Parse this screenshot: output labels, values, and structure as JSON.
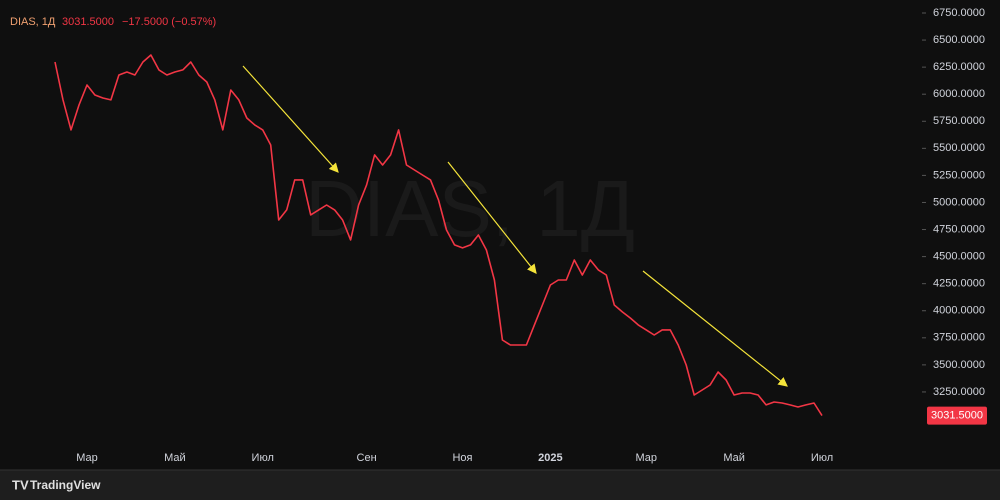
{
  "chart_data": {
    "type": "line",
    "title": "DIAS, 1Д",
    "header_price": "3031.5000",
    "header_change": "−17.5000 (−0.57%)",
    "brand": "TradingView",
    "categories": [
      null,
      null,
      null,
      null,
      "Мар",
      null,
      null,
      null,
      null,
      null,
      null,
      null,
      null,
      null,
      null,
      "Май",
      null,
      null,
      null,
      null,
      null,
      null,
      null,
      null,
      null,
      null,
      "Июл",
      null,
      null,
      null,
      null,
      null,
      null,
      null,
      null,
      null,
      null,
      null,
      null,
      "Сен",
      null,
      null,
      null,
      null,
      null,
      null,
      null,
      null,
      null,
      null,
      null,
      "Ноя",
      null,
      null,
      null,
      null,
      null,
      null,
      null,
      null,
      null,
      null,
      "2025",
      null,
      null,
      null,
      null,
      null,
      null,
      null,
      null,
      null,
      null,
      null,
      "Мар",
      null,
      null,
      null,
      null,
      null,
      null,
      null,
      null,
      null,
      null,
      "Май",
      null,
      null,
      null,
      null,
      null,
      null,
      null,
      null,
      null,
      null,
      "Июл"
    ],
    "series": [
      {
        "name": "DIAS",
        "color": "#f23645",
        "values": [
          6297,
          5947,
          5670,
          5900,
          6085,
          5993,
          5965,
          5947,
          6177,
          6205,
          6177,
          6297,
          6362,
          6224,
          6177,
          6205,
          6224,
          6297,
          6177,
          6113,
          5947,
          5670,
          6039,
          5947,
          5780,
          5716,
          5670,
          5531,
          4838,
          4931,
          5208,
          5208,
          4885,
          4931,
          4977,
          4931,
          4838,
          4654,
          4977,
          5162,
          5439,
          5346,
          5439,
          5670,
          5346,
          5300,
          5254,
          5208,
          5023,
          4746,
          4608,
          4580,
          4608,
          4700,
          4561,
          4284,
          3730,
          3684,
          3684,
          3684,
          3869,
          4053,
          4238,
          4284,
          4284,
          4469,
          4330,
          4469,
          4377,
          4330,
          4053,
          3989,
          3933,
          3869,
          3823,
          3776,
          3823,
          3823,
          3684,
          3499,
          3222,
          3268,
          3314,
          3434,
          3360,
          3222,
          3240,
          3240,
          3222,
          3130,
          3157,
          3148,
          3130,
          3111,
          3130,
          3148,
          3031.5
        ]
      }
    ],
    "last_value_label": "3031.5000",
    "ylim": [
      2760,
      6870
    ],
    "yticks": [
      {
        "value": 3250,
        "label": "3250.0000"
      },
      {
        "value": 3500,
        "label": "3500.0000"
      },
      {
        "value": 3750,
        "label": "3750.0000"
      },
      {
        "value": 4000,
        "label": "4000.0000"
      },
      {
        "value": 4250,
        "label": "4250.0000"
      },
      {
        "value": 4500,
        "label": "4500.0000"
      },
      {
        "value": 4750,
        "label": "4750.0000"
      },
      {
        "value": 5000,
        "label": "5000.0000"
      },
      {
        "value": 5250,
        "label": "5250.0000"
      },
      {
        "value": 5500,
        "label": "5500.0000"
      },
      {
        "value": 5750,
        "label": "5750.0000"
      },
      {
        "value": 6000,
        "label": "6000.0000"
      },
      {
        "value": 6250,
        "label": "6250.0000"
      },
      {
        "value": 6500,
        "label": "6500.0000"
      },
      {
        "value": 6750,
        "label": "6750.0000"
      }
    ],
    "grid": false
  }
}
